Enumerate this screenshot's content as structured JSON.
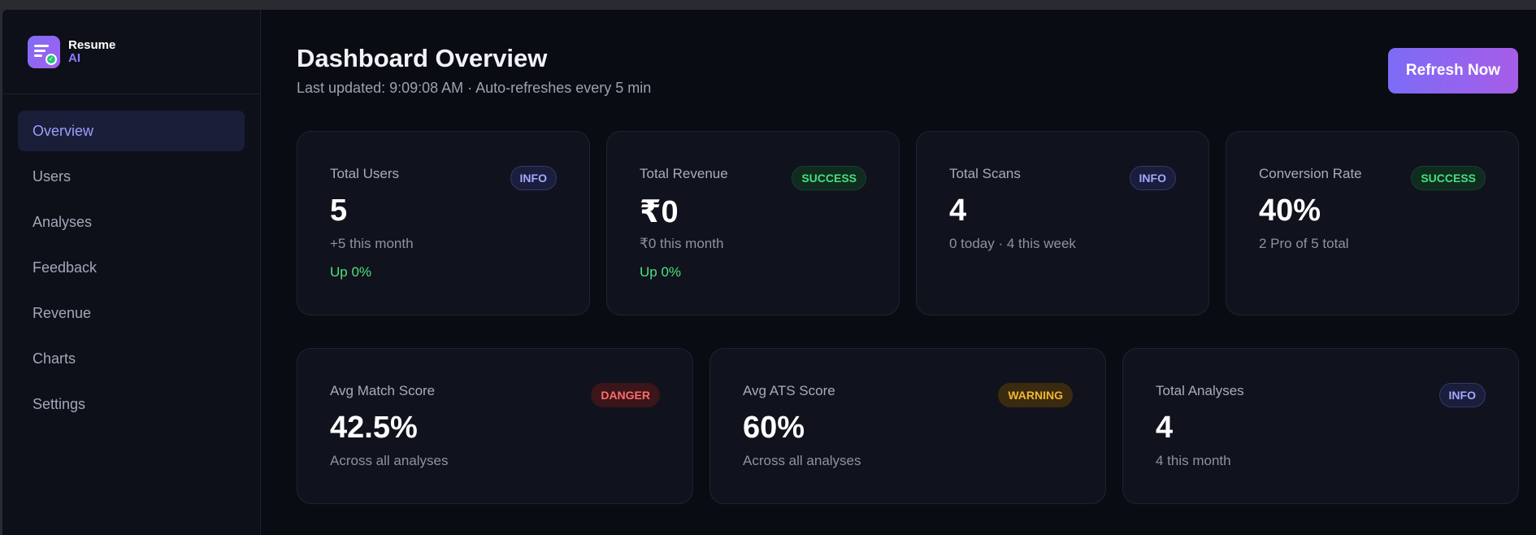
{
  "brand": {
    "name": "Resume",
    "sub": "AI"
  },
  "nav": [
    {
      "label": "Overview",
      "active": true
    },
    {
      "label": "Users",
      "active": false
    },
    {
      "label": "Analyses",
      "active": false
    },
    {
      "label": "Feedback",
      "active": false
    },
    {
      "label": "Revenue",
      "active": false
    },
    {
      "label": "Charts",
      "active": false
    },
    {
      "label": "Settings",
      "active": false
    }
  ],
  "header": {
    "title": "Dashboard Overview",
    "subtitle": "Last updated: 9:09:08 AM · Auto-refreshes every 5 min",
    "refresh_label": "Refresh Now"
  },
  "stats": [
    {
      "label": "Total Users",
      "badge": "INFO",
      "badge_type": "info",
      "value": "5",
      "sub": "+5 this month",
      "trend": "Up 0%"
    },
    {
      "label": "Total Revenue",
      "badge": "SUCCESS",
      "badge_type": "success",
      "value": "₹0",
      "sub": "₹0 this month",
      "trend": "Up 0%"
    },
    {
      "label": "Total Scans",
      "badge": "INFO",
      "badge_type": "info",
      "value": "4",
      "sub": "0 today · 4 this week",
      "trend": ""
    },
    {
      "label": "Conversion Rate",
      "badge": "SUCCESS",
      "badge_type": "success",
      "value": "40%",
      "sub": "2 Pro of 5 total",
      "trend": ""
    },
    {
      "label": "Avg Match Score",
      "badge": "DANGER",
      "badge_type": "danger",
      "value": "42.5%",
      "sub": "Across all analyses",
      "trend": ""
    },
    {
      "label": "Avg ATS Score",
      "badge": "WARNING",
      "badge_type": "warning",
      "value": "60%",
      "sub": "Across all analyses",
      "trend": ""
    },
    {
      "label": "Total Analyses",
      "badge": "INFO",
      "badge_type": "info",
      "value": "4",
      "sub": "4 this month",
      "trend": ""
    }
  ],
  "colors": {
    "accent": "#8d7cff",
    "success": "#45e07e",
    "danger": "#ff6b6b",
    "warning": "#f2b632",
    "info": "#a4a8ff"
  }
}
